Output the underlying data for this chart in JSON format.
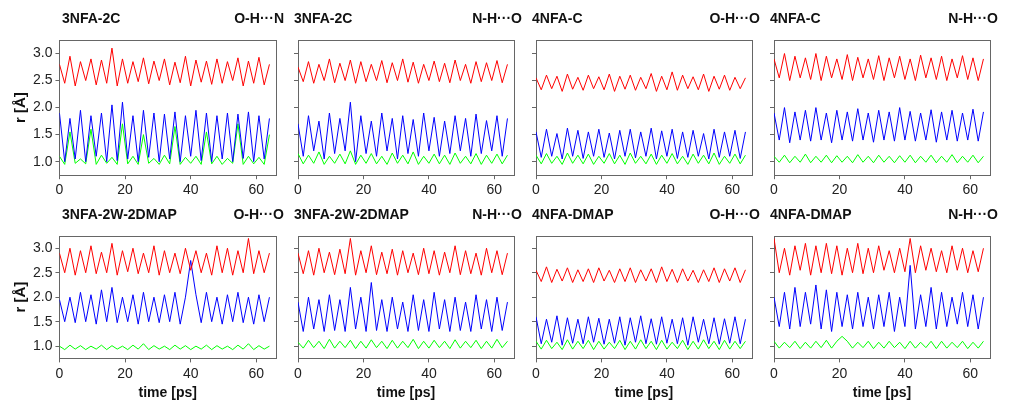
{
  "chart_data": [
    {
      "type": "line",
      "title": "3NFA-2C",
      "subtitle": "O-H···N",
      "ylabel": "r [Å]",
      "grid": false,
      "xlim": [
        0,
        66
      ],
      "ylim": [
        0.75,
        3.25
      ],
      "xticks": [
        0,
        20,
        40,
        60
      ],
      "yticks": [
        {
          "value": 1,
          "label": "1.0"
        },
        {
          "value": 1.5,
          "label": "1.5"
        },
        {
          "value": 2,
          "label": "2.0"
        },
        {
          "value": 2.5,
          "label": "2.5"
        },
        {
          "value": 3,
          "label": "3.0"
        }
      ],
      "x": [
        0,
        1.6,
        3.2,
        4.8,
        6.4,
        8,
        9.6,
        11.2,
        12.8,
        14.4,
        16,
        17.6,
        19.2,
        20.8,
        22.4,
        24,
        25.6,
        27.2,
        28.8,
        30.4,
        32,
        33.6,
        35.2,
        36.8,
        38.4,
        40,
        41.6,
        43.2,
        44.8,
        46.4,
        48,
        49.6,
        51.2,
        52.8,
        54.4,
        56,
        57.6,
        59.2,
        60.8,
        62.4,
        64
      ],
      "series": [
        {
          "color": "#ff0000",
          "values": [
            2.8,
            2.45,
            2.95,
            2.4,
            2.85,
            2.5,
            2.9,
            2.42,
            2.88,
            2.45,
            3.1,
            2.4,
            2.9,
            2.45,
            2.85,
            2.48,
            2.92,
            2.44,
            2.86,
            2.5,
            2.9,
            2.42,
            2.84,
            2.46,
            2.95,
            2.4,
            2.88,
            2.47,
            2.86,
            2.43,
            2.9,
            2.45,
            2.85,
            2.5,
            2.92,
            2.4,
            2.86,
            2.45,
            2.93,
            2.42,
            2.8
          ]
        },
        {
          "color": "#0000ff",
          "values": [
            1.9,
            1.0,
            1.8,
            1.05,
            1.95,
            1.0,
            1.85,
            1.1,
            1.9,
            1.0,
            2.05,
            1.02,
            2.1,
            1.05,
            1.85,
            1.0,
            1.95,
            1.08,
            1.9,
            1.0,
            1.88,
            1.05,
            1.92,
            1.0,
            1.85,
            1.1,
            1.95,
            1.02,
            1.9,
            1.0,
            1.85,
            1.05,
            1.9,
            1.0,
            1.88,
            1.06,
            1.92,
            1.0,
            1.85,
            1.05,
            1.8
          ]
        },
        {
          "color": "#00ff00",
          "values": [
            1.1,
            0.95,
            1.55,
            0.97,
            1.05,
            0.96,
            1.6,
            0.95,
            1.12,
            0.97,
            1.08,
            0.95,
            1.7,
            0.96,
            1.1,
            0.95,
            1.5,
            0.97,
            1.06,
            0.95,
            1.12,
            0.96,
            1.65,
            0.95,
            1.08,
            0.97,
            1.1,
            0.95,
            1.55,
            0.96,
            1.1,
            0.95,
            1.06,
            0.97,
            1.7,
            0.95,
            1.1,
            0.96,
            1.08,
            0.95,
            1.5
          ]
        }
      ]
    },
    {
      "type": "line",
      "title": "3NFA-2C",
      "subtitle": "N-H···O",
      "tick_labels": "x",
      "grid": false,
      "xlim": [
        0,
        66
      ],
      "ylim": [
        0.75,
        3.25
      ],
      "xticks": [
        0,
        20,
        40,
        60
      ],
      "yticks": [
        {
          "value": 1,
          "label": null
        },
        {
          "value": 1.5,
          "label": null
        },
        {
          "value": 2,
          "label": null
        },
        {
          "value": 2.5,
          "label": null
        },
        {
          "value": 3,
          "label": null
        }
      ],
      "x": [
        0,
        1.6,
        3.2,
        4.8,
        6.4,
        8,
        9.6,
        11.2,
        12.8,
        14.4,
        16,
        17.6,
        19.2,
        20.8,
        22.4,
        24,
        25.6,
        27.2,
        28.8,
        30.4,
        32,
        33.6,
        35.2,
        36.8,
        38.4,
        40,
        41.6,
        43.2,
        44.8,
        46.4,
        48,
        49.6,
        51.2,
        52.8,
        54.4,
        56,
        57.6,
        59.2,
        60.8,
        62.4,
        64
      ],
      "series": [
        {
          "color": "#ff0000",
          "values": [
            2.75,
            2.48,
            2.85,
            2.45,
            2.8,
            2.5,
            2.9,
            2.46,
            2.82,
            2.5,
            2.88,
            2.45,
            2.85,
            2.48,
            2.8,
            2.5,
            2.87,
            2.46,
            2.83,
            2.5,
            2.9,
            2.47,
            2.84,
            2.45,
            2.8,
            2.5,
            2.86,
            2.48,
            2.82,
            2.46,
            2.88,
            2.5,
            2.8,
            2.45,
            2.85,
            2.48,
            2.83,
            2.5,
            2.87,
            2.46,
            2.8
          ]
        },
        {
          "color": "#0000ff",
          "values": [
            1.7,
            1.1,
            1.85,
            1.2,
            1.75,
            1.05,
            1.9,
            1.15,
            1.8,
            1.2,
            2.1,
            1.0,
            1.85,
            1.15,
            1.75,
            1.1,
            1.9,
            1.2,
            1.8,
            1.05,
            1.85,
            1.15,
            1.78,
            1.1,
            1.9,
            1.2,
            1.82,
            1.1,
            1.75,
            1.15,
            1.85,
            1.2,
            1.8,
            1.1,
            1.88,
            1.15,
            1.76,
            1.2,
            1.85,
            1.1,
            1.8
          ]
        },
        {
          "color": "#00ff00",
          "values": [
            1.15,
            0.96,
            1.12,
            0.97,
            1.18,
            0.95,
            1.1,
            0.97,
            1.14,
            0.96,
            1.2,
            0.95,
            1.12,
            0.97,
            1.15,
            0.96,
            1.1,
            0.95,
            1.16,
            0.97,
            1.12,
            0.96,
            1.18,
            0.95,
            1.1,
            0.97,
            1.14,
            0.96,
            1.12,
            0.95,
            1.16,
            0.97,
            1.1,
            0.96,
            1.15,
            0.95,
            1.12,
            0.97,
            1.14,
            0.96,
            1.12
          ]
        }
      ]
    },
    {
      "type": "line",
      "title": "4NFA-C",
      "subtitle": "O-H···O",
      "tick_labels": "x",
      "grid": false,
      "xlim": [
        0,
        66
      ],
      "ylim": [
        0.75,
        3.25
      ],
      "xticks": [
        0,
        20,
        40,
        60
      ],
      "yticks": [
        {
          "value": 1,
          "label": null
        },
        {
          "value": 1.5,
          "label": null
        },
        {
          "value": 2,
          "label": null
        },
        {
          "value": 2.5,
          "label": null
        },
        {
          "value": 3,
          "label": null
        }
      ],
      "x": [
        0,
        1.6,
        3.2,
        4.8,
        6.4,
        8,
        9.6,
        11.2,
        12.8,
        14.4,
        16,
        17.6,
        19.2,
        20.8,
        22.4,
        24,
        25.6,
        27.2,
        28.8,
        30.4,
        32,
        33.6,
        35.2,
        36.8,
        38.4,
        40,
        41.6,
        43.2,
        44.8,
        46.4,
        48,
        49.6,
        51.2,
        52.8,
        54.4,
        56,
        57.6,
        59.2,
        60.8,
        62.4,
        64
      ],
      "series": [
        {
          "color": "#ff0000",
          "values": [
            2.55,
            2.33,
            2.6,
            2.35,
            2.58,
            2.3,
            2.62,
            2.34,
            2.56,
            2.32,
            2.6,
            2.35,
            2.57,
            2.33,
            2.62,
            2.3,
            2.58,
            2.34,
            2.6,
            2.32,
            2.56,
            2.35,
            2.63,
            2.3,
            2.58,
            2.33,
            2.66,
            2.32,
            2.6,
            2.35,
            2.57,
            2.33,
            2.62,
            2.3,
            2.58,
            2.34,
            2.6,
            2.32,
            2.56,
            2.35,
            2.55
          ]
        },
        {
          "color": "#0000ff",
          "values": [
            1.55,
            1.08,
            1.6,
            1.1,
            1.52,
            1.05,
            1.62,
            1.1,
            1.58,
            1.06,
            1.55,
            1.1,
            1.6,
            1.08,
            1.53,
            1.05,
            1.58,
            1.1,
            1.6,
            1.07,
            1.55,
            1.1,
            1.62,
            1.05,
            1.57,
            1.1,
            1.6,
            1.06,
            1.55,
            1.08,
            1.58,
            1.1,
            1.52,
            1.05,
            1.6,
            1.08,
            1.55,
            1.1,
            1.58,
            1.06,
            1.55
          ]
        },
        {
          "color": "#00ff00",
          "values": [
            1.12,
            0.96,
            1.15,
            0.97,
            1.1,
            0.95,
            1.16,
            0.97,
            1.12,
            0.96,
            1.14,
            0.95,
            1.1,
            0.97,
            1.15,
            0.96,
            1.12,
            0.95,
            1.16,
            0.97,
            1.1,
            0.96,
            1.14,
            0.95,
            1.12,
            0.97,
            1.15,
            0.96,
            1.1,
            0.95,
            1.14,
            0.97,
            1.12,
            0.96,
            1.16,
            0.95,
            1.1,
            0.97,
            1.14,
            0.96,
            1.12
          ]
        }
      ]
    },
    {
      "type": "line",
      "title": "4NFA-C",
      "subtitle": "N-H···O",
      "tick_labels": "x",
      "grid": false,
      "xlim": [
        0,
        66
      ],
      "ylim": [
        0.75,
        3.25
      ],
      "xticks": [
        0,
        20,
        40,
        60
      ],
      "yticks": [
        {
          "value": 1,
          "label": null
        },
        {
          "value": 1.5,
          "label": null
        },
        {
          "value": 2,
          "label": null
        },
        {
          "value": 2.5,
          "label": null
        },
        {
          "value": 3,
          "label": null
        }
      ],
      "x": [
        0,
        1.6,
        3.2,
        4.8,
        6.4,
        8,
        9.6,
        11.2,
        12.8,
        14.4,
        16,
        17.6,
        19.2,
        20.8,
        22.4,
        24,
        25.6,
        27.2,
        28.8,
        30.4,
        32,
        33.6,
        35.2,
        36.8,
        38.4,
        40,
        41.6,
        43.2,
        44.8,
        46.4,
        48,
        49.6,
        51.2,
        52.8,
        54.4,
        56,
        57.6,
        59.2,
        60.8,
        62.4,
        64
      ],
      "series": [
        {
          "color": "#ff0000",
          "values": [
            2.9,
            2.55,
            3.0,
            2.5,
            2.95,
            2.55,
            2.92,
            2.52,
            3.0,
            2.5,
            2.95,
            2.55,
            2.9,
            2.52,
            2.98,
            2.5,
            2.93,
            2.55,
            2.9,
            2.52,
            2.96,
            2.5,
            2.92,
            2.55,
            2.95,
            2.52,
            2.9,
            2.5,
            2.97,
            2.55,
            2.92,
            2.52,
            2.95,
            2.5,
            2.9,
            2.55,
            2.96,
            2.52,
            2.92,
            2.5,
            2.9
          ]
        },
        {
          "color": "#0000ff",
          "values": [
            1.9,
            1.4,
            2.0,
            1.35,
            1.92,
            1.4,
            1.95,
            1.38,
            2.0,
            1.4,
            1.9,
            1.35,
            1.95,
            1.4,
            1.92,
            1.38,
            1.98,
            1.4,
            1.9,
            1.36,
            1.95,
            1.4,
            1.92,
            1.38,
            2.0,
            1.4,
            1.93,
            1.38,
            1.9,
            1.4,
            1.96,
            1.36,
            1.92,
            1.4,
            1.95,
            1.38,
            1.9,
            1.4,
            1.97,
            1.38,
            1.92
          ]
        },
        {
          "color": "#00ff00",
          "values": [
            1.1,
            0.99,
            1.12,
            0.98,
            1.1,
            0.99,
            1.14,
            0.98,
            1.1,
            0.99,
            1.12,
            0.98,
            1.11,
            0.99,
            1.1,
            0.98,
            1.13,
            0.99,
            1.1,
            0.98,
            1.12,
            0.99,
            1.1,
            0.98,
            1.11,
            0.99,
            1.12,
            0.98,
            1.1,
            0.99,
            1.12,
            0.98,
            1.1,
            0.99,
            1.13,
            0.98,
            1.1,
            0.99,
            1.12,
            0.98,
            1.1
          ]
        }
      ]
    },
    {
      "type": "line",
      "title": "3NFA-2W-2DMAP",
      "subtitle": "O-H···O",
      "ylabel": "r [Å]",
      "xlabel": "time [ps]",
      "grid": false,
      "xlim": [
        0,
        66
      ],
      "ylim": [
        0.75,
        3.25
      ],
      "xticks": [
        0,
        20,
        40,
        60
      ],
      "yticks": [
        {
          "value": 1,
          "label": "1.0"
        },
        {
          "value": 1.5,
          "label": "1.5"
        },
        {
          "value": 2,
          "label": "2.0"
        },
        {
          "value": 2.5,
          "label": "2.5"
        },
        {
          "value": 3,
          "label": "3.0"
        }
      ],
      "x": [
        0,
        1.6,
        3.2,
        4.8,
        6.4,
        8,
        9.6,
        11.2,
        12.8,
        14.4,
        16,
        17.6,
        19.2,
        20.8,
        22.4,
        24,
        25.6,
        27.2,
        28.8,
        30.4,
        32,
        33.6,
        35.2,
        36.8,
        38.4,
        40,
        41.6,
        43.2,
        44.8,
        46.4,
        48,
        49.6,
        51.2,
        52.8,
        54.4,
        56,
        57.6,
        59.2,
        60.8,
        62.4,
        64
      ],
      "series": [
        {
          "color": "#ff0000",
          "values": [
            2.9,
            2.5,
            3.0,
            2.45,
            2.95,
            2.5,
            3.05,
            2.48,
            2.92,
            2.5,
            3.1,
            2.45,
            2.95,
            2.52,
            3.0,
            2.48,
            2.9,
            2.5,
            3.05,
            2.45,
            2.95,
            2.5,
            2.9,
            2.48,
            3.0,
            2.55,
            2.95,
            2.5,
            2.9,
            2.45,
            3.05,
            2.5,
            3.0,
            2.45,
            2.95,
            2.5,
            3.2,
            2.48,
            2.95,
            2.5,
            2.9
          ]
        },
        {
          "color": "#0000ff",
          "values": [
            1.95,
            1.5,
            2.0,
            1.48,
            2.1,
            1.5,
            2.05,
            1.45,
            2.15,
            1.5,
            2.2,
            1.48,
            2.0,
            1.5,
            2.05,
            1.45,
            2.1,
            1.5,
            2.0,
            1.48,
            2.05,
            1.5,
            2.1,
            1.45,
            2.0,
            2.75,
            2.05,
            1.48,
            2.1,
            1.5,
            2.0,
            1.45,
            2.05,
            1.5,
            2.1,
            1.48,
            2.0,
            1.45,
            2.05,
            1.5,
            2.0
          ]
        },
        {
          "color": "#00ff00",
          "values": [
            1.0,
            0.93,
            1.02,
            0.94,
            1.01,
            0.93,
            1.0,
            0.94,
            1.02,
            0.93,
            1.01,
            0.94,
            1.0,
            0.93,
            1.02,
            0.94,
            1.05,
            0.93,
            1.01,
            0.94,
            1.0,
            0.93,
            1.02,
            0.94,
            1.01,
            0.93,
            1.0,
            0.94,
            1.02,
            0.93,
            1.01,
            0.94,
            1.0,
            0.93,
            1.02,
            0.94,
            1.05,
            0.93,
            1.01,
            0.94,
            1.0
          ]
        }
      ]
    },
    {
      "type": "line",
      "title": "3NFA-2W-2DMAP",
      "subtitle": "N-H···O",
      "xlabel": "time [ps]",
      "tick_labels": "x",
      "grid": false,
      "xlim": [
        0,
        66
      ],
      "ylim": [
        0.75,
        3.25
      ],
      "xticks": [
        0,
        20,
        40,
        60
      ],
      "yticks": [
        {
          "value": 1,
          "label": null
        },
        {
          "value": 1.5,
          "label": null
        },
        {
          "value": 2,
          "label": null
        },
        {
          "value": 2.5,
          "label": null
        },
        {
          "value": 3,
          "label": null
        }
      ],
      "x": [
        0,
        1.6,
        3.2,
        4.8,
        6.4,
        8,
        9.6,
        11.2,
        12.8,
        14.4,
        16,
        17.6,
        19.2,
        20.8,
        22.4,
        24,
        25.6,
        27.2,
        28.8,
        30.4,
        32,
        33.6,
        35.2,
        36.8,
        38.4,
        40,
        41.6,
        43.2,
        44.8,
        46.4,
        48,
        49.6,
        51.2,
        52.8,
        54.4,
        56,
        57.6,
        59.2,
        60.8,
        62.4,
        64
      ],
      "series": [
        {
          "color": "#ff0000",
          "values": [
            2.9,
            2.48,
            2.95,
            2.45,
            3.0,
            2.5,
            2.92,
            2.46,
            2.98,
            2.48,
            3.2,
            2.45,
            2.95,
            2.5,
            3.05,
            2.46,
            2.92,
            2.48,
            2.98,
            2.45,
            2.95,
            2.5,
            2.9,
            2.46,
            3.0,
            2.48,
            2.95,
            2.45,
            2.92,
            2.5,
            3.05,
            2.46,
            2.95,
            2.48,
            2.9,
            2.45,
            3.0,
            2.5,
            2.95,
            2.46,
            2.9
          ]
        },
        {
          "color": "#0000ff",
          "values": [
            1.9,
            1.3,
            2.0,
            1.35,
            1.95,
            1.3,
            2.05,
            1.32,
            1.95,
            1.3,
            2.2,
            1.35,
            2.0,
            1.3,
            2.3,
            1.32,
            1.95,
            1.3,
            2.0,
            1.35,
            1.9,
            1.3,
            2.05,
            1.32,
            1.95,
            1.3,
            2.1,
            1.35,
            1.95,
            1.3,
            2.0,
            1.32,
            1.9,
            1.3,
            2.05,
            1.35,
            1.95,
            1.3,
            2.0,
            1.32,
            1.9
          ]
        },
        {
          "color": "#00ff00",
          "values": [
            1.08,
            0.96,
            1.12,
            0.97,
            1.1,
            0.95,
            1.14,
            0.96,
            1.1,
            0.97,
            1.12,
            0.95,
            1.1,
            0.96,
            1.13,
            0.97,
            1.1,
            0.95,
            1.12,
            0.96,
            1.1,
            0.97,
            1.14,
            0.95,
            1.1,
            0.96,
            1.12,
            0.97,
            1.1,
            0.95,
            1.13,
            0.96,
            1.1,
            0.97,
            1.12,
            0.95,
            1.1,
            0.96,
            1.14,
            0.97,
            1.1
          ]
        }
      ]
    },
    {
      "type": "line",
      "title": "4NFA-DMAP",
      "subtitle": "O-H···O",
      "xlabel": "time [ps]",
      "tick_labels": "x",
      "grid": false,
      "xlim": [
        0,
        66
      ],
      "ylim": [
        0.75,
        3.25
      ],
      "xticks": [
        0,
        20,
        40,
        60
      ],
      "yticks": [
        {
          "value": 1,
          "label": null
        },
        {
          "value": 1.5,
          "label": null
        },
        {
          "value": 2,
          "label": null
        },
        {
          "value": 2.5,
          "label": null
        },
        {
          "value": 3,
          "label": null
        }
      ],
      "x": [
        0,
        1.6,
        3.2,
        4.8,
        6.4,
        8,
        9.6,
        11.2,
        12.8,
        14.4,
        16,
        17.6,
        19.2,
        20.8,
        22.4,
        24,
        25.6,
        27.2,
        28.8,
        30.4,
        32,
        33.6,
        35.2,
        36.8,
        38.4,
        40,
        41.6,
        43.2,
        44.8,
        46.4,
        48,
        49.6,
        51.2,
        52.8,
        54.4,
        56,
        57.6,
        59.2,
        60.8,
        62.4,
        64
      ],
      "series": [
        {
          "color": "#ff0000",
          "values": [
            2.55,
            2.32,
            2.62,
            2.3,
            2.57,
            2.33,
            2.6,
            2.3,
            2.56,
            2.32,
            2.58,
            2.3,
            2.6,
            2.33,
            2.55,
            2.3,
            2.58,
            2.32,
            2.6,
            2.3,
            2.56,
            2.33,
            2.58,
            2.3,
            2.62,
            2.32,
            2.57,
            2.3,
            2.58,
            2.33,
            2.55,
            2.3,
            2.56,
            2.32,
            2.6,
            2.3,
            2.58,
            2.33,
            2.6,
            2.3,
            2.56
          ]
        },
        {
          "color": "#0000ff",
          "values": [
            1.6,
            1.05,
            1.55,
            1.08,
            1.62,
            1.02,
            1.58,
            1.06,
            1.55,
            1.05,
            1.6,
            1.08,
            1.57,
            1.04,
            1.55,
            1.06,
            1.6,
            1.02,
            1.58,
            1.08,
            1.62,
            1.05,
            1.56,
            1.04,
            1.6,
            1.06,
            1.55,
            1.05,
            1.58,
            1.02,
            1.6,
            1.08,
            1.55,
            1.05,
            1.58,
            1.04,
            1.56,
            1.06,
            1.6,
            1.05,
            1.55
          ]
        },
        {
          "color": "#00ff00",
          "values": [
            1.1,
            0.94,
            1.12,
            0.95,
            1.08,
            0.93,
            1.13,
            0.94,
            1.1,
            0.95,
            1.12,
            0.93,
            1.1,
            0.94,
            1.08,
            0.95,
            1.12,
            0.93,
            1.1,
            0.94,
            1.13,
            0.95,
            1.1,
            0.93,
            1.12,
            0.94,
            1.08,
            0.95,
            1.12,
            0.93,
            1.1,
            0.94,
            1.13,
            0.95,
            1.1,
            0.93,
            1.12,
            0.94,
            1.1,
            0.95,
            1.1
          ]
        }
      ]
    },
    {
      "type": "line",
      "title": "4NFA-DMAP",
      "subtitle": "N-H···O",
      "xlabel": "time [ps]",
      "tick_labels": "x",
      "grid": false,
      "xlim": [
        0,
        66
      ],
      "ylim": [
        0.75,
        3.25
      ],
      "xticks": [
        0,
        20,
        40,
        60
      ],
      "yticks": [
        {
          "value": 1,
          "label": null
        },
        {
          "value": 1.5,
          "label": null
        },
        {
          "value": 2,
          "label": null
        },
        {
          "value": 2.5,
          "label": null
        },
        {
          "value": 3,
          "label": null
        }
      ],
      "x": [
        0,
        1.6,
        3.2,
        4.8,
        6.4,
        8,
        9.6,
        11.2,
        12.8,
        14.4,
        16,
        17.6,
        19.2,
        20.8,
        22.4,
        24,
        25.6,
        27.2,
        28.8,
        30.4,
        32,
        33.6,
        35.2,
        36.8,
        38.4,
        40,
        41.6,
        43.2,
        44.8,
        46.4,
        48,
        49.6,
        51.2,
        52.8,
        54.4,
        56,
        57.6,
        59.2,
        60.8,
        62.4,
        64
      ],
      "series": [
        {
          "color": "#ff0000",
          "values": [
            3.2,
            2.5,
            3.0,
            2.45,
            3.05,
            2.55,
            3.1,
            2.45,
            3.05,
            2.5,
            3.1,
            2.48,
            3.05,
            2.45,
            3.0,
            2.5,
            3.1,
            2.48,
            3.0,
            2.5,
            3.05,
            2.55,
            2.95,
            2.5,
            3.0,
            2.52,
            3.2,
            2.5,
            3.05,
            2.55,
            3.0,
            2.52,
            2.95,
            2.5,
            3.05,
            2.55,
            3.0,
            2.5,
            2.95,
            2.52,
            3.0
          ]
        },
        {
          "color": "#0000ff",
          "values": [
            2.0,
            1.4,
            2.1,
            1.35,
            2.2,
            1.4,
            2.1,
            1.45,
            2.25,
            1.35,
            2.15,
            1.3,
            2.1,
            1.4,
            2.05,
            1.35,
            2.1,
            1.4,
            2.0,
            1.35,
            2.05,
            1.4,
            2.1,
            1.3,
            2.0,
            1.4,
            2.65,
            1.35,
            2.05,
            1.4,
            2.2,
            1.35,
            2.1,
            1.4,
            2.0,
            1.45,
            2.1,
            1.4,
            2.05,
            1.35,
            2.0
          ]
        },
        {
          "color": "#00ff00",
          "values": [
            1.1,
            0.96,
            1.08,
            0.97,
            1.1,
            0.95,
            1.08,
            0.96,
            1.1,
            0.97,
            1.12,
            0.96,
            1.1,
            1.2,
            1.1,
            0.96,
            1.08,
            0.97,
            1.1,
            0.95,
            1.08,
            0.96,
            1.1,
            0.97,
            1.08,
            0.95,
            1.1,
            0.96,
            1.08,
            0.97,
            1.1,
            0.95,
            1.1,
            0.96,
            1.08,
            0.97,
            1.1,
            0.95,
            1.08,
            0.96,
            1.1
          ]
        }
      ]
    }
  ]
}
